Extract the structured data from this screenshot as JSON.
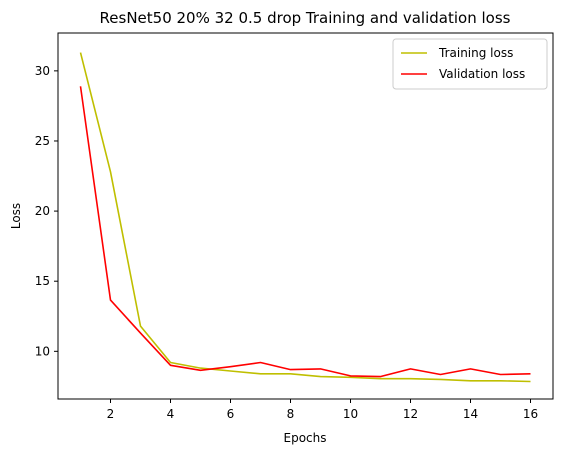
{
  "chart_data": {
    "type": "line",
    "title": "ResNet50 20% 32 0.5 drop Training and validation loss",
    "xlabel": "Epochs",
    "ylabel": "Loss",
    "x": [
      1,
      2,
      3,
      4,
      5,
      6,
      7,
      8,
      9,
      10,
      11,
      12,
      13,
      14,
      15,
      16
    ],
    "xticks": [
      2,
      4,
      6,
      8,
      10,
      12,
      14,
      16
    ],
    "yticks": [
      10,
      15,
      20,
      25,
      30
    ],
    "xlim": [
      0.25,
      16.75
    ],
    "ylim": [
      6.6,
      32.7
    ],
    "grid": false,
    "legend_position": "top-right",
    "series": [
      {
        "name": "Training loss",
        "color": "#bfbf00",
        "values": [
          31.3,
          22.8,
          11.8,
          9.2,
          8.8,
          8.6,
          8.4,
          8.4,
          8.2,
          8.15,
          8.05,
          8.05,
          8.0,
          7.9,
          7.9,
          7.85
        ]
      },
      {
        "name": "Validation loss",
        "color": "#ff0000",
        "values": [
          28.9,
          13.65,
          11.3,
          9.0,
          8.65,
          8.9,
          9.2,
          8.7,
          8.75,
          8.25,
          8.2,
          8.75,
          8.35,
          8.75,
          8.35,
          8.4
        ]
      }
    ]
  }
}
